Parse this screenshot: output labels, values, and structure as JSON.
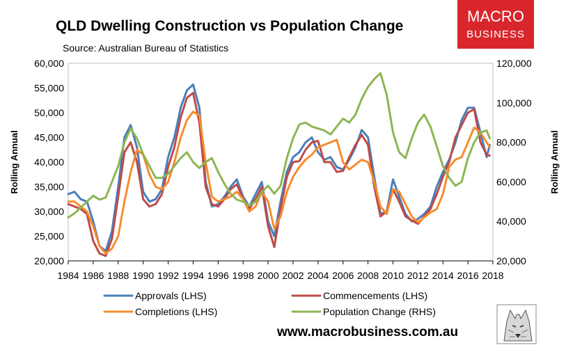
{
  "brand": {
    "line1": "MACRO",
    "line2": "BUSINESS",
    "bg_color": "#d9262c"
  },
  "website": "www.macrobusiness.com.au",
  "chart_data": {
    "type": "line",
    "title": "QLD Dwelling Construction vs Population Change",
    "subtitle": "Source: Australian Bureau of Statistics",
    "xlabel": "",
    "ylabel_left": "Rolling Annual",
    "ylabel_right": "Rolling Annual",
    "xlim": [
      1984,
      2018
    ],
    "ylim_left": [
      20000,
      60000
    ],
    "ylim_right": [
      20000,
      120000
    ],
    "x_ticks": [
      "1984",
      "1986",
      "1988",
      "1990",
      "1992",
      "1994",
      "1996",
      "1998",
      "2000",
      "2002",
      "2004",
      "2006",
      "2008",
      "2010",
      "2012",
      "2014",
      "2016",
      "2018"
    ],
    "y_ticks_left": [
      "20,000",
      "25,000",
      "30,000",
      "35,000",
      "40,000",
      "45,000",
      "50,000",
      "55,000",
      "60,000"
    ],
    "y_ticks_right": [
      "20,000",
      "40,000",
      "60,000",
      "80,000",
      "100,000",
      "120,000"
    ],
    "grid": false,
    "legend_position": "bottom",
    "series": [
      {
        "name": "Approvals (LHS)",
        "axis": "left",
        "color": "#4a7ebb",
        "x": [
          1984,
          1984.5,
          1985,
          1985.5,
          1986,
          1986.5,
          1987,
          1987.5,
          1988,
          1988.5,
          1989,
          1989.5,
          1990,
          1990.5,
          1991,
          1991.5,
          1992,
          1992.5,
          1993,
          1993.5,
          1994,
          1994.5,
          1995,
          1995.5,
          1996,
          1996.5,
          1997,
          1997.5,
          1998,
          1998.5,
          1999,
          1999.5,
          2000,
          2000.5,
          2001,
          2001.5,
          2002,
          2002.5,
          2003,
          2003.5,
          2004,
          2004.5,
          2005,
          2005.5,
          2006,
          2006.5,
          2007,
          2007.5,
          2008,
          2008.5,
          2009,
          2009.5,
          2010,
          2010.5,
          2011,
          2011.5,
          2012,
          2012.5,
          2013,
          2013.5,
          2014,
          2014.5,
          2015,
          2015.5,
          2016,
          2016.5,
          2017,
          2017.5,
          2017.75
        ],
        "values": [
          33500,
          34000,
          32500,
          32000,
          28000,
          23000,
          22000,
          26000,
          35000,
          45000,
          47500,
          43000,
          34000,
          32000,
          32500,
          34500,
          41000,
          45000,
          51000,
          54500,
          55700,
          51000,
          36000,
          31000,
          31500,
          33000,
          35000,
          36500,
          33000,
          31000,
          33500,
          36000,
          28000,
          25000,
          32000,
          38000,
          41000,
          42000,
          44000,
          45000,
          42000,
          40500,
          41000,
          39000,
          38500,
          40500,
          43000,
          46500,
          45000,
          37000,
          29500,
          30000,
          36500,
          33000,
          29500,
          28000,
          28500,
          29500,
          31000,
          35000,
          38000,
          40500,
          44000,
          48500,
          51000,
          51000,
          46000,
          41000,
          43500
        ]
      },
      {
        "name": "Commencements (LHS)",
        "axis": "left",
        "color": "#be4b48",
        "x": [
          1984,
          1984.5,
          1985,
          1985.5,
          1986,
          1986.5,
          1987,
          1987.5,
          1988,
          1988.5,
          1989,
          1989.5,
          1990,
          1990.5,
          1991,
          1991.5,
          1992,
          1992.5,
          1993,
          1993.5,
          1994,
          1994.5,
          1995,
          1995.5,
          1996,
          1996.5,
          1997,
          1997.5,
          1998,
          1998.5,
          1999,
          1999.5,
          2000,
          2000.5,
          2001,
          2001.5,
          2002,
          2002.5,
          2003,
          2003.5,
          2004,
          2004.5,
          2005,
          2005.5,
          2006,
          2006.5,
          2007,
          2007.5,
          2008,
          2008.5,
          2009,
          2009.5,
          2010,
          2010.5,
          2011,
          2011.5,
          2012,
          2012.5,
          2013,
          2013.5,
          2014,
          2014.5,
          2015,
          2015.5,
          2016,
          2016.5,
          2017,
          2017.5,
          2017.75
        ],
        "values": [
          31500,
          31000,
          30500,
          29500,
          24000,
          21500,
          21000,
          24500,
          33000,
          42000,
          44000,
          40000,
          32500,
          31000,
          31500,
          33500,
          39000,
          43000,
          49000,
          53000,
          54000,
          48000,
          35000,
          31500,
          31000,
          32500,
          34500,
          35500,
          32500,
          30500,
          32500,
          35000,
          27000,
          22800,
          30500,
          37000,
          40000,
          40200,
          42500,
          44000,
          44300,
          40000,
          40000,
          38000,
          38200,
          41000,
          43500,
          45500,
          43500,
          35000,
          29000,
          30000,
          34500,
          32000,
          29000,
          28200,
          27500,
          29000,
          30500,
          33500,
          37000,
          40000,
          45000,
          47500,
          50000,
          50700,
          44000,
          41500,
          41300
        ]
      },
      {
        "name": "Completions (LHS)",
        "axis": "left",
        "color": "#f68c2d",
        "x": [
          1984,
          1984.5,
          1985,
          1985.5,
          1986,
          1986.5,
          1987,
          1987.5,
          1988,
          1988.5,
          1989,
          1989.5,
          1990,
          1990.5,
          1991,
          1991.5,
          1992,
          1992.5,
          1993,
          1993.5,
          1994,
          1994.5,
          1995,
          1995.5,
          1996,
          1996.5,
          1997,
          1997.5,
          1998,
          1998.5,
          1999,
          1999.5,
          2000,
          2000.5,
          2001,
          2001.5,
          2002,
          2002.5,
          2003,
          2003.5,
          2004,
          2004.5,
          2005,
          2005.5,
          2006,
          2006.5,
          2007,
          2007.5,
          2008,
          2008.5,
          2009,
          2009.5,
          2010,
          2010.5,
          2011,
          2011.5,
          2012,
          2012.5,
          2013,
          2013.5,
          2014,
          2014.5,
          2015,
          2015.5,
          2016,
          2016.5,
          2017,
          2017.5,
          2017.75
        ],
        "values": [
          32000,
          32000,
          31000,
          30000,
          27000,
          23000,
          21500,
          22500,
          25000,
          32000,
          38000,
          42500,
          41500,
          37500,
          35000,
          34500,
          36000,
          40000,
          45000,
          48500,
          50200,
          49500,
          40000,
          33000,
          32000,
          32500,
          33000,
          34000,
          32500,
          30000,
          31000,
          34000,
          32000,
          26500,
          29000,
          34000,
          37000,
          39000,
          40500,
          41500,
          43000,
          43500,
          44000,
          44500,
          40000,
          38500,
          39500,
          40500,
          40000,
          36000,
          31000,
          29500,
          34500,
          34000,
          31500,
          29000,
          27800,
          28800,
          29800,
          30500,
          33500,
          39000,
          40500,
          41000,
          44000,
          47000,
          46000,
          44000,
          43000
        ]
      },
      {
        "name": "Population Change (RHS)",
        "axis": "right",
        "color": "#8db553",
        "x": [
          1984,
          1984.5,
          1985,
          1985.5,
          1986,
          1986.5,
          1987,
          1987.5,
          1988,
          1988.5,
          1989,
          1989.5,
          1990,
          1990.5,
          1991,
          1991.5,
          1992,
          1992.5,
          1993,
          1993.5,
          1994,
          1994.5,
          1995,
          1995.5,
          1996,
          1996.5,
          1997,
          1997.5,
          1998,
          1998.5,
          1999,
          1999.5,
          2000,
          2000.5,
          2001,
          2001.5,
          2002,
          2002.5,
          2003,
          2003.5,
          2004,
          2004.5,
          2005,
          2005.5,
          2006,
          2006.5,
          2007,
          2007.5,
          2008,
          2008.5,
          2009,
          2009.5,
          2010,
          2010.5,
          2011,
          2011.5,
          2012,
          2012.5,
          2013,
          2013.5,
          2014,
          2014.5,
          2015,
          2015.5,
          2016,
          2016.5,
          2017,
          2017.5,
          2017.75
        ],
        "values": [
          42000,
          44000,
          47000,
          50000,
          53000,
          51000,
          52000,
          60000,
          68000,
          80000,
          87000,
          82000,
          74000,
          68000,
          62000,
          62000,
          64000,
          68000,
          72000,
          75000,
          70000,
          67000,
          70000,
          72000,
          65000,
          59000,
          54000,
          51000,
          50000,
          48000,
          50000,
          55000,
          58000,
          54000,
          58000,
          72000,
          82000,
          89000,
          90000,
          88000,
          87000,
          86000,
          84000,
          88000,
          92000,
          90000,
          94000,
          102000,
          108000,
          112000,
          115000,
          104000,
          85000,
          75000,
          72000,
          82000,
          90000,
          94000,
          88000,
          78000,
          68000,
          62000,
          58000,
          60000,
          72000,
          80000,
          85000,
          86000,
          82000
        ]
      }
    ]
  }
}
